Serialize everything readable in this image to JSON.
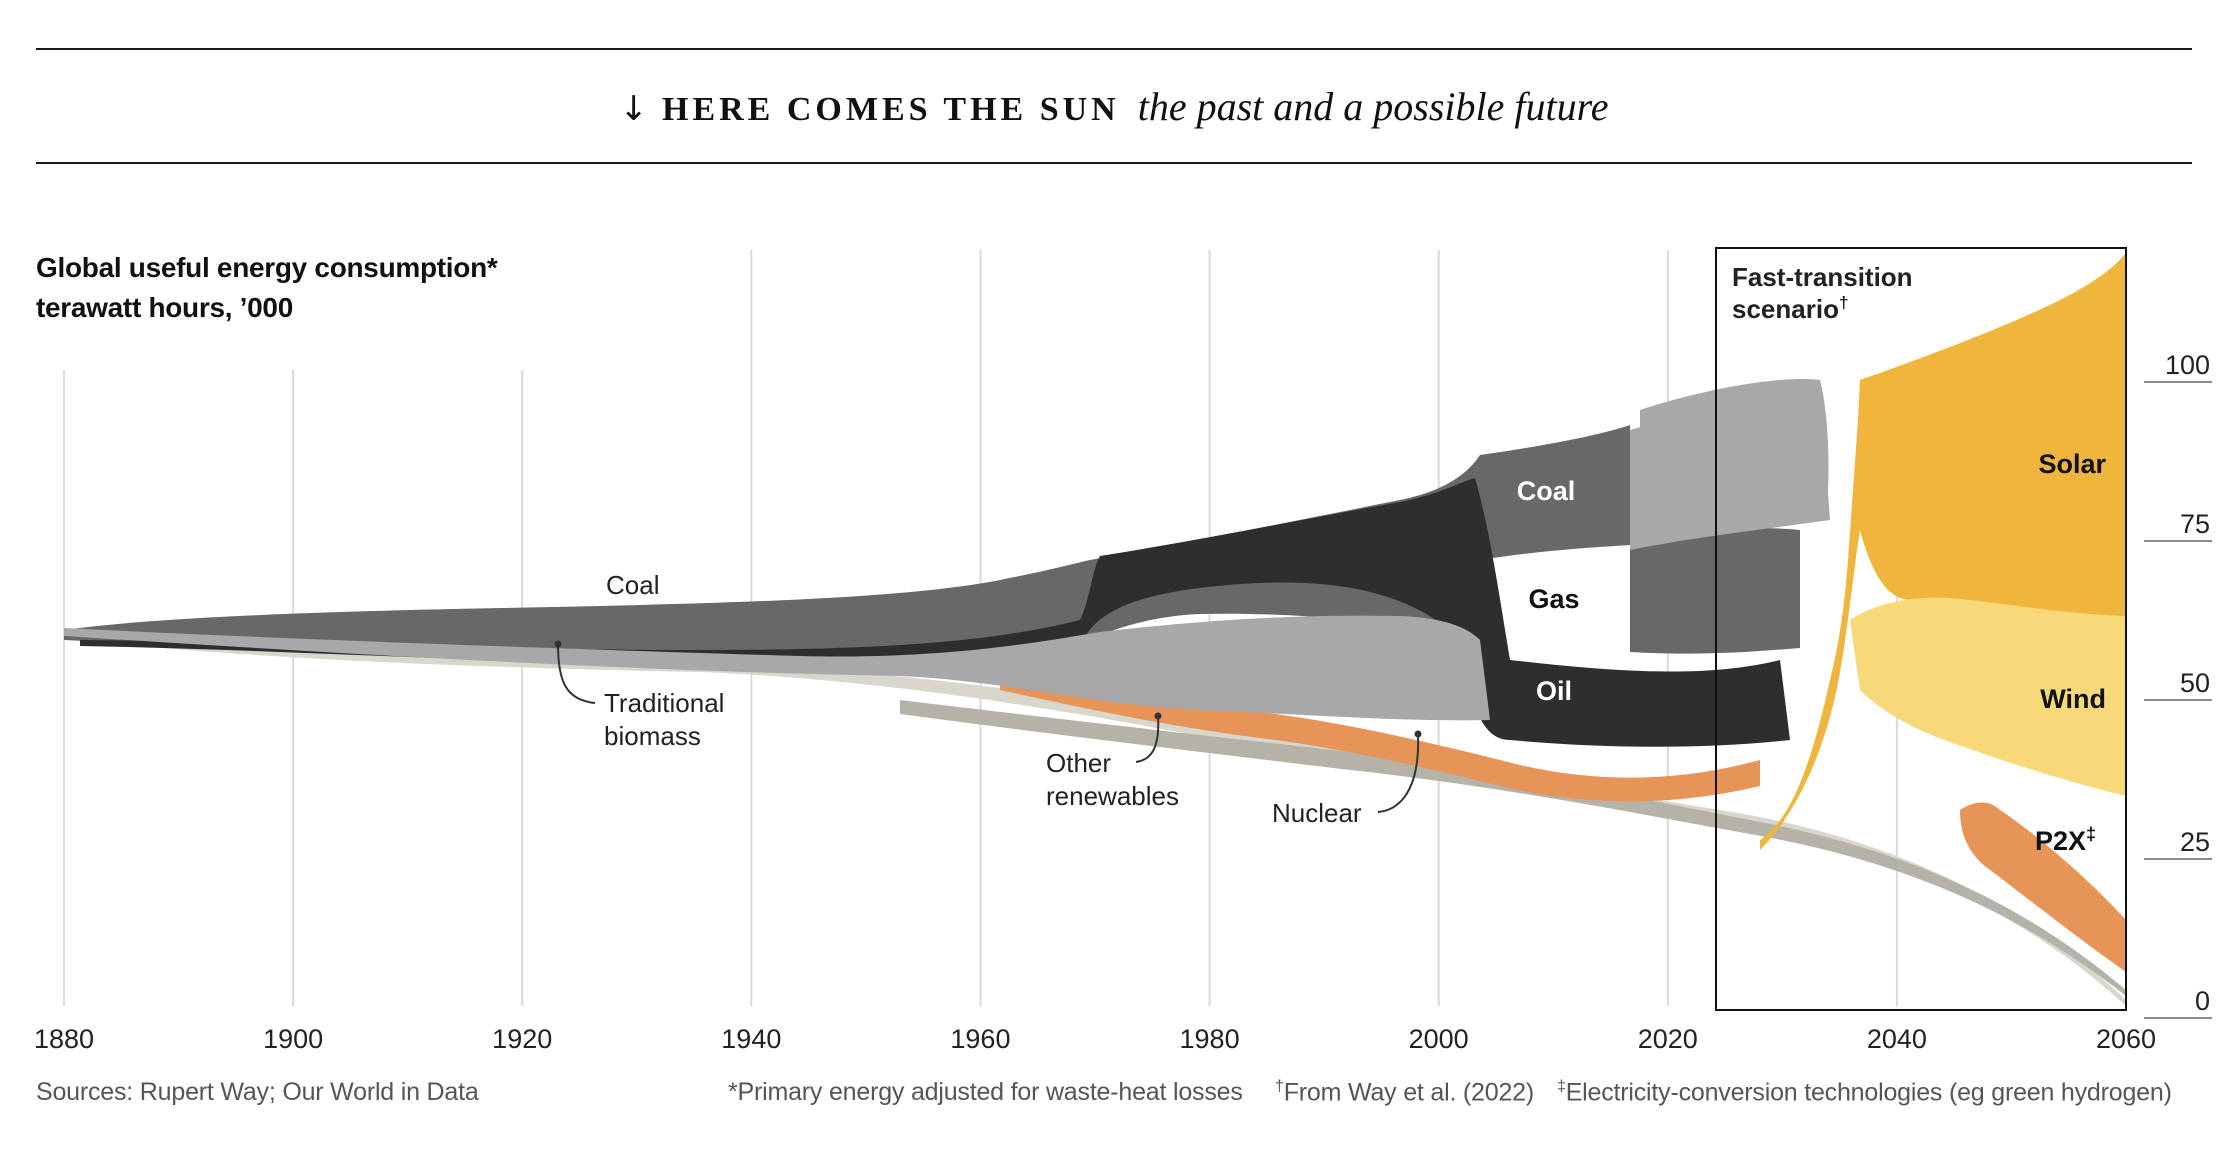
{
  "header": {
    "kicker": "HERE COMES THE SUN",
    "dek": "the past and a possible future"
  },
  "chart_data": {
    "type": "area",
    "title": "Global useful energy consumption*",
    "subtitle": "terawatt hours, ’000",
    "x_ticks": [
      1880,
      1900,
      1920,
      1940,
      1960,
      1980,
      2000,
      2020,
      2040,
      2060
    ],
    "y_ticks": [
      0,
      25,
      50,
      75,
      100
    ],
    "xlim": [
      1880,
      2060
    ],
    "ylim": [
      0,
      100
    ],
    "grid": true,
    "scenario_label": "Fast-transition",
    "scenario_label_2": "scenario",
    "scenario_dagger": "†",
    "scenario_range": [
      2024,
      2060
    ],
    "series": [
      {
        "name": "Coal",
        "color": "#686869"
      },
      {
        "name": "Gas",
        "color": "#a8a8aa"
      },
      {
        "name": "Oil",
        "color": "#2e2e2f"
      },
      {
        "name": "Solar",
        "color": "#efb53d"
      },
      {
        "name": "Wind",
        "color": "#f7d979"
      },
      {
        "name": "P2X",
        "color": "#e69458"
      }
    ],
    "annotations": {
      "coal": "Coal",
      "traditional_1": "Traditional",
      "traditional_2": "biomass",
      "other_1": "Other",
      "other_2": "renewables",
      "nuclear": "Nuclear",
      "coal_inline": "Coal",
      "gas_inline": "Gas",
      "oil_inline": "Oil",
      "solar_inline": "Solar",
      "wind_inline": "Wind",
      "p2x_inline": "P2X",
      "p2x_mark": "‡"
    }
  },
  "footer": {
    "source": "Sources: Rupert Way; Our World in Data",
    "note1": "*Primary energy adjusted for waste-heat losses",
    "dagger": "†",
    "note2": "From Way et al. (2022)",
    "ddagger": "‡",
    "note3": "Electricity-conversion technologies (eg green hydrogen)"
  }
}
